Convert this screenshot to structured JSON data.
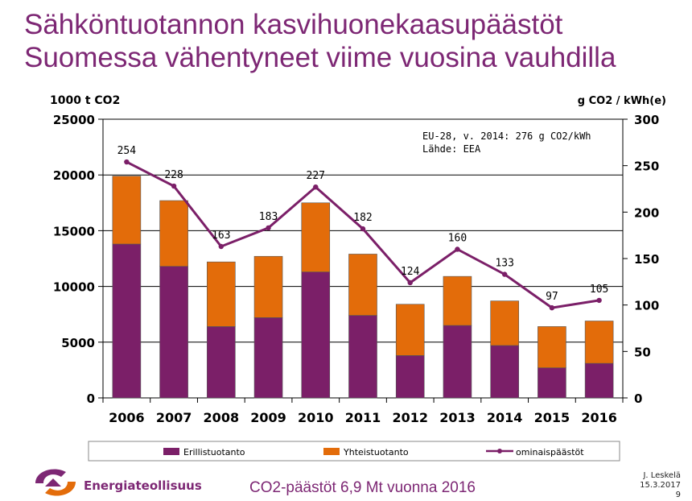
{
  "header": {
    "title_line1": "Sähköntuotannon kasvihuonekaasupäästöt",
    "title_line2": "Suomessa vähentyneet viime vuosina vauhdilla"
  },
  "chart_data": {
    "type": "bar",
    "stacked": true,
    "categories": [
      "2006",
      "2007",
      "2008",
      "2009",
      "2010",
      "2011",
      "2012",
      "2013",
      "2014",
      "2015",
      "2016"
    ],
    "series": [
      {
        "name": "Erillistuotanto",
        "axis": "left",
        "color": "#7b1f68",
        "values": [
          13800,
          11800,
          6400,
          7200,
          11300,
          7400,
          3800,
          6500,
          4700,
          2700,
          3100
        ]
      },
      {
        "name": "Yhteistuotanto",
        "axis": "left",
        "color": "#e36c0a",
        "values": [
          6100,
          5900,
          5800,
          5500,
          6200,
          5500,
          4600,
          4400,
          4000,
          3700,
          3800
        ]
      },
      {
        "name": "ominaispäästöt",
        "axis": "right",
        "type": "line",
        "color": "#7b1f68",
        "values": [
          254,
          228,
          163,
          183,
          227,
          182,
          124,
          160,
          133,
          97,
          105
        ]
      }
    ],
    "ylabel_left": "1000 t CO2",
    "ylabel_right": "g CO2 / kWh(e)",
    "ylim_left": [
      0,
      25000
    ],
    "ylim_right": [
      0,
      300
    ],
    "yticks_left": [
      "0",
      "5000",
      "10000",
      "15000",
      "20000",
      "25000"
    ],
    "yticks_right": [
      "0",
      "50",
      "100",
      "150",
      "200",
      "250",
      "300"
    ],
    "annotation_line1": "EU-28, v. 2014: 276 g CO2/kWh",
    "annotation_line2": "Lähde: EEA",
    "legend_position": "bottom"
  },
  "footer": {
    "brand": "Energiateollisuus",
    "caption": "CO2-päästöt 6,9 Mt vuonna 2016",
    "author": "J. Leskelä",
    "date": "15.3.2017",
    "page": "9"
  },
  "colors": {
    "accent": "#7d2774",
    "orange": "#e36c0a",
    "purple": "#7b1f68"
  }
}
